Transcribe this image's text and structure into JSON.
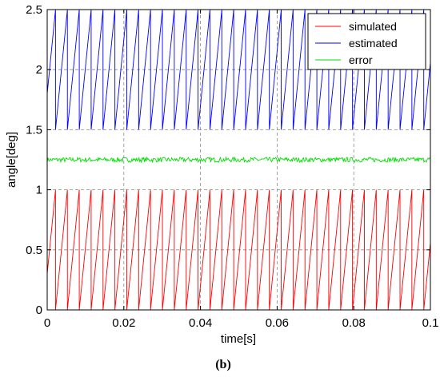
{
  "caption": "(b)",
  "chart_data": {
    "type": "line",
    "title": "",
    "xlabel": "time[s]",
    "ylabel": "angle[deg]",
    "xlim": [
      0,
      0.1
    ],
    "ylim": [
      0,
      2.5
    ],
    "grid": true,
    "legend_position": "top-right",
    "x_ticks": [
      0,
      0.02,
      0.04,
      0.06,
      0.08,
      0.1
    ],
    "x_tick_labels": [
      "0",
      "0.02",
      "0.04",
      "0.06",
      "0.08",
      "0.1"
    ],
    "y_ticks": [
      0,
      0.5,
      1,
      1.5,
      2,
      2.5
    ],
    "y_tick_labels": [
      "0",
      "0.5",
      "1",
      "1.5",
      "2",
      "2.5"
    ],
    "sawtooth_period_s": 0.0031,
    "series": [
      {
        "name": "simulated",
        "color": "#ff0000",
        "pattern": "sawtooth",
        "min": 0,
        "max": 1.0
      },
      {
        "name": "estimated",
        "color": "#0000ff",
        "pattern": "sawtooth",
        "min": 1.5,
        "max": 2.5
      },
      {
        "name": "error",
        "color": "#00dd00",
        "pattern": "noise",
        "center": 1.25,
        "amplitude": 0.02
      }
    ]
  }
}
